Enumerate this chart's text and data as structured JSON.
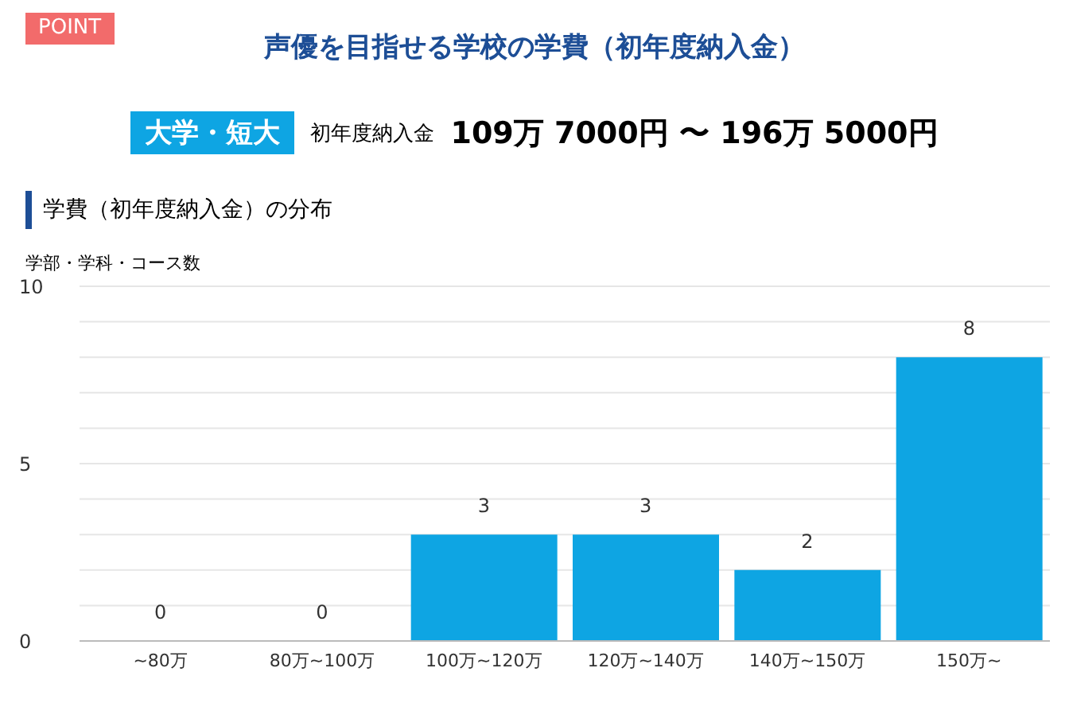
{
  "chart_data": {
    "type": "bar",
    "title": "声優を目指せる学校の学費（初年度納入金）",
    "subtitle": "学費（初年度納入金）の分布",
    "ylabel": "学部・学科・コース数",
    "annotations": [
      "POINT",
      "大学・短大",
      "初年度納入金",
      "109万 7000円 〜 196万 5000円"
    ],
    "categories": [
      "~80万",
      "80万~100万",
      "100万~120万",
      "120万~140万",
      "140万~150万",
      "150万~"
    ],
    "values": [
      0,
      0,
      3,
      3,
      2,
      8
    ],
    "color": "#0ea5e3",
    "data_labels": true,
    "grid": "y",
    "ylim": [
      0,
      10
    ],
    "yticks": [
      0,
      {
        "value": 1,
        "label": null
      },
      {
        "value": 2,
        "label": null
      },
      {
        "value": 3,
        "label": null
      },
      {
        "value": 4,
        "label": null
      },
      5,
      {
        "value": 6,
        "label": null
      },
      {
        "value": 7,
        "label": null
      },
      {
        "value": 8,
        "label": null
      },
      {
        "value": 9,
        "label": null
      },
      10
    ]
  }
}
